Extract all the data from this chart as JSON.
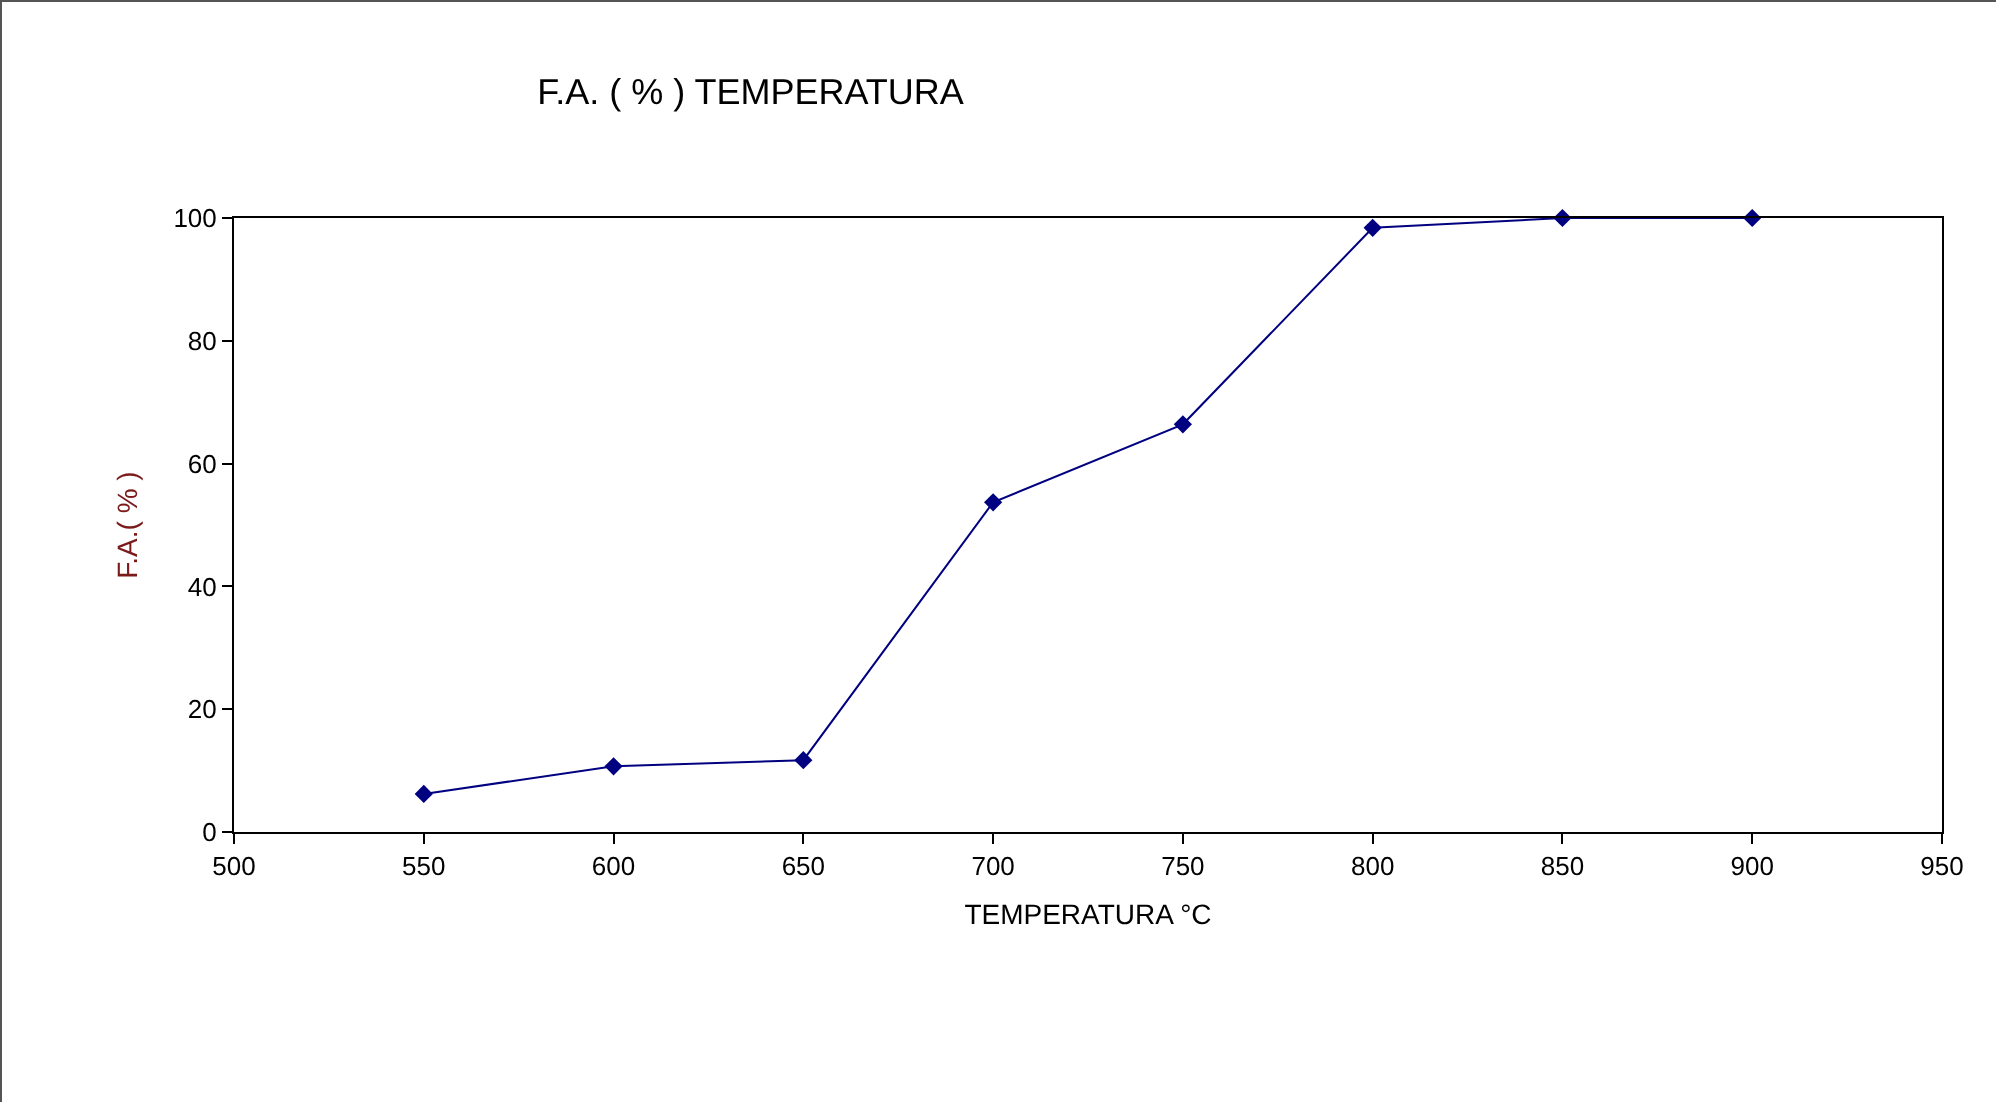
{
  "chart_data": {
    "type": "line",
    "title": "F.A. ( % ) TEMPERATURA",
    "xlabel": "TEMPERATURA °C",
    "ylabel": "F.A.( % )",
    "x": [
      550,
      600,
      650,
      700,
      750,
      800,
      850,
      900
    ],
    "series": [
      {
        "color": "#000080",
        "values": [
          6.2,
          10.7,
          11.7,
          53.7,
          66.4,
          98.4,
          100,
          100
        ]
      }
    ],
    "xlim": [
      500,
      950
    ],
    "xticks": [
      500,
      550,
      600,
      650,
      700,
      750,
      800,
      850,
      900,
      950
    ],
    "ylim": [
      0,
      100
    ],
    "yticks": [
      0,
      20,
      40,
      60,
      80,
      100
    ],
    "grid": false,
    "legend": false,
    "marker": "diamond",
    "line_style": "solid"
  }
}
